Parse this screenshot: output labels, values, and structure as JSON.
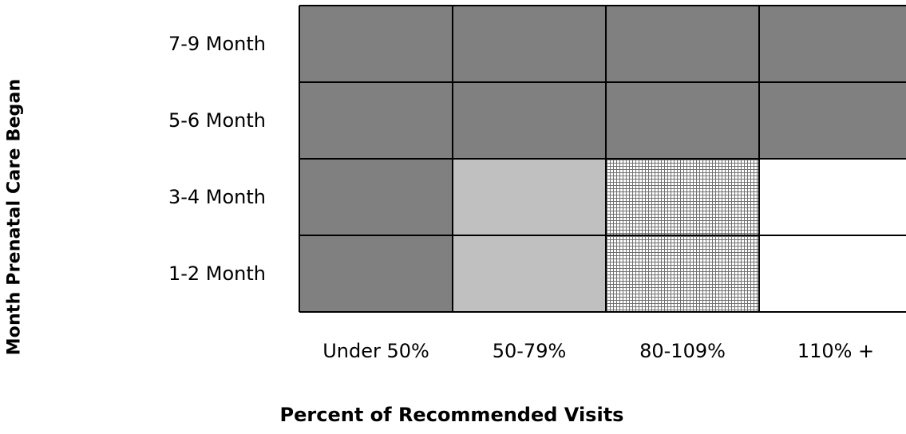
{
  "chart_data": {
    "type": "heatmap",
    "title": "",
    "xlabel": "Percent of Recommended Visits",
    "ylabel": "Month Prenatal Care Began",
    "x_categories": [
      "Under 50%",
      "50-79%",
      "80-109%",
      "110% +"
    ],
    "y_categories": [
      "7-9 Month",
      "5-6 Month",
      "3-4 Month",
      "1-2 Month"
    ],
    "cells": [
      [
        "dark",
        "dark",
        "dark",
        "dark"
      ],
      [
        "dark",
        "dark",
        "dark",
        "dark"
      ],
      [
        "dark",
        "light",
        "crosshatch",
        "white"
      ],
      [
        "dark",
        "light",
        "crosshatch",
        "white"
      ]
    ],
    "grid": true,
    "legend": "none",
    "colors": {
      "dark": "#808080",
      "light": "#c0c0c0",
      "crosshatch": "#ffffff",
      "crosshatch_lines": "#707070",
      "white": "#ffffff",
      "border": "#000000"
    }
  }
}
